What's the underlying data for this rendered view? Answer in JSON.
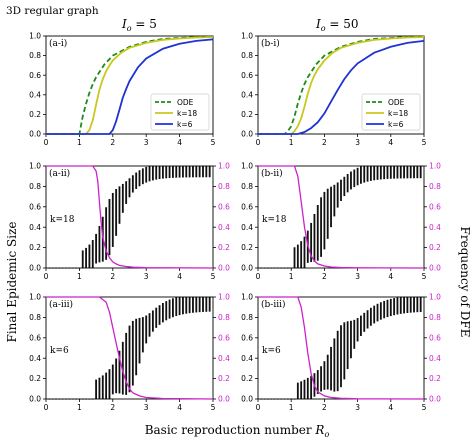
{
  "figure": {
    "title": "3D regular graph",
    "col_headers": [
      {
        "prefix": "I",
        "sub": "o",
        "rest": " = 5"
      },
      {
        "prefix": "I",
        "sub": "o",
        "rest": " = 50"
      }
    ],
    "left_ylabel": "Final Epidemic Size",
    "right_ylabel": "Frequency of DFE",
    "xlabel_main": "Basic reproduction number ",
    "xlabel_var": "R",
    "xlabel_sub": "o"
  },
  "colors": {
    "ode": "#1a8c1a",
    "k18": "#c8c81e",
    "k6": "#1f32d2",
    "dfe": "#cc22cc",
    "bars": "#111111"
  },
  "chart_data": [
    {
      "panel": "(a-i)",
      "type": "line",
      "xlim": [
        0,
        5
      ],
      "ylim": [
        0,
        1.0
      ],
      "xticks": [
        "0",
        "1",
        "2",
        "3",
        "4",
        "5"
      ],
      "yticks": [
        "0.0",
        "0.2",
        "0.4",
        "0.6",
        "0.8",
        "1.0"
      ],
      "legend_position": "lower-right",
      "series": [
        {
          "name": "ODE",
          "style": "dashed",
          "x": [
            1.0,
            1.1,
            1.2,
            1.3,
            1.4,
            1.5,
            1.75,
            2.0,
            2.5,
            3.0,
            3.5,
            4.0,
            4.5,
            5.0
          ],
          "y": [
            0,
            0.18,
            0.31,
            0.42,
            0.51,
            0.58,
            0.71,
            0.8,
            0.89,
            0.94,
            0.97,
            0.98,
            0.99,
            0.993
          ]
        },
        {
          "name": "k=18",
          "style": "solid",
          "x": [
            1.2,
            1.3,
            1.4,
            1.5,
            1.6,
            1.7,
            1.8,
            1.9,
            2.0,
            2.25,
            2.5,
            3.0,
            3.5,
            4.0,
            4.5,
            5.0
          ],
          "y": [
            0,
            0.04,
            0.14,
            0.3,
            0.45,
            0.56,
            0.64,
            0.7,
            0.75,
            0.83,
            0.88,
            0.93,
            0.96,
            0.975,
            0.985,
            0.99
          ]
        },
        {
          "name": "k=6",
          "style": "solid",
          "x": [
            1.9,
            2.0,
            2.1,
            2.2,
            2.3,
            2.4,
            2.5,
            2.75,
            3.0,
            3.5,
            4.0,
            4.5,
            5.0
          ],
          "y": [
            0,
            0.04,
            0.13,
            0.25,
            0.37,
            0.46,
            0.54,
            0.68,
            0.77,
            0.87,
            0.92,
            0.95,
            0.965
          ]
        }
      ]
    },
    {
      "panel": "(b-i)",
      "type": "line",
      "xlim": [
        0,
        5
      ],
      "ylim": [
        0,
        1.0
      ],
      "xticks": [
        "0",
        "1",
        "2",
        "3",
        "4",
        "5"
      ],
      "yticks": [
        "0.0",
        "0.2",
        "0.4",
        "0.6",
        "0.8",
        "1.0"
      ],
      "legend_position": "lower-right",
      "series": [
        {
          "name": "ODE",
          "style": "dashed",
          "x": [
            0.8,
            0.9,
            1.0,
            1.1,
            1.2,
            1.3,
            1.4,
            1.5,
            1.75,
            2.0,
            2.5,
            3.0,
            3.5,
            4.0,
            4.5,
            5.0
          ],
          "y": [
            0,
            0.03,
            0.08,
            0.18,
            0.31,
            0.42,
            0.51,
            0.58,
            0.71,
            0.8,
            0.89,
            0.94,
            0.97,
            0.98,
            0.99,
            0.993
          ]
        },
        {
          "name": "k=18",
          "style": "solid",
          "x": [
            1.0,
            1.1,
            1.2,
            1.3,
            1.4,
            1.5,
            1.6,
            1.7,
            1.8,
            2.0,
            2.25,
            2.5,
            3.0,
            3.5,
            4.0,
            4.5,
            5.0
          ],
          "y": [
            0,
            0.03,
            0.08,
            0.16,
            0.28,
            0.41,
            0.52,
            0.6,
            0.66,
            0.75,
            0.83,
            0.88,
            0.93,
            0.96,
            0.975,
            0.985,
            0.99
          ]
        },
        {
          "name": "k=6",
          "style": "solid",
          "x": [
            1.2,
            1.4,
            1.6,
            1.8,
            2.0,
            2.2,
            2.4,
            2.6,
            2.8,
            3.0,
            3.5,
            4.0,
            4.5,
            5.0
          ],
          "y": [
            0,
            0.02,
            0.06,
            0.12,
            0.21,
            0.33,
            0.45,
            0.56,
            0.65,
            0.72,
            0.83,
            0.89,
            0.93,
            0.95
          ]
        }
      ]
    },
    {
      "panel": "(a-ii)",
      "type": "bar",
      "label": "k=18",
      "xlim": [
        0,
        5
      ],
      "ylim": [
        0,
        1.0
      ],
      "y2lim": [
        0,
        1.0
      ],
      "xticks": [
        "0",
        "1",
        "2",
        "3",
        "4",
        "5"
      ],
      "yticks": [
        "0.0",
        "0.2",
        "0.4",
        "0.6",
        "0.8",
        "1.0"
      ],
      "y2ticks": [
        "0.0",
        "0.2",
        "0.4",
        "0.6",
        "0.8",
        "1.0"
      ],
      "bars": {
        "x0": 0.1,
        "dx": 0.1,
        "count": 49,
        "onset": 1.0,
        "mid": 1.95,
        "scale": 0.36,
        "max": 0.98,
        "spread": [
          0.1,
          0.32
        ],
        "spread_end": 0.05
      },
      "dfe": {
        "x": [
          0,
          1.4,
          1.5,
          1.55,
          1.6,
          1.65,
          1.7,
          1.8,
          1.9,
          2.0,
          2.1,
          2.2,
          2.4,
          2.6,
          3.0,
          5.0
        ],
        "y": [
          1.0,
          1.0,
          0.95,
          0.85,
          0.65,
          0.45,
          0.3,
          0.17,
          0.1,
          0.06,
          0.04,
          0.025,
          0.015,
          0.008,
          0.003,
          0
        ]
      }
    },
    {
      "panel": "(b-ii)",
      "type": "bar",
      "label": "k=18",
      "xlim": [
        0,
        5
      ],
      "ylim": [
        0,
        1.0
      ],
      "y2lim": [
        0,
        1.0
      ],
      "xticks": [
        "0",
        "1",
        "2",
        "3",
        "4",
        "5"
      ],
      "yticks": [
        "0.0",
        "0.2",
        "0.4",
        "0.6",
        "0.8",
        "1.0"
      ],
      "y2ticks": [
        "0.0",
        "0.2",
        "0.4",
        "0.6",
        "0.8",
        "1.0"
      ],
      "bars": {
        "x0": 0.1,
        "dx": 0.1,
        "count": 49,
        "onset": 1.0,
        "mid": 1.95,
        "scale": 0.4,
        "max": 0.98,
        "spread": [
          0.12,
          0.33
        ],
        "spread_end": 0.05
      },
      "dfe": {
        "x": [
          0,
          1.1,
          1.2,
          1.3,
          1.4,
          1.5,
          1.6,
          1.7,
          1.8,
          2.0,
          2.2,
          2.5,
          3.0,
          5.0
        ],
        "y": [
          1.0,
          1.0,
          0.9,
          0.65,
          0.4,
          0.22,
          0.12,
          0.07,
          0.04,
          0.02,
          0.01,
          0.005,
          0.002,
          0
        ]
      }
    },
    {
      "panel": "(a-iii)",
      "type": "bar",
      "label": "k=6",
      "xlim": [
        0,
        5
      ],
      "ylim": [
        0,
        1.0
      ],
      "y2lim": [
        0,
        1.0
      ],
      "xticks": [
        "0",
        "1",
        "2",
        "3",
        "4",
        "5"
      ],
      "yticks": [
        "0.0",
        "0.2",
        "0.4",
        "0.6",
        "0.8",
        "1.0"
      ],
      "y2ticks": [
        "0.0",
        "0.2",
        "0.4",
        "0.6",
        "0.8",
        "1.0"
      ],
      "bars": {
        "x0": 0.1,
        "dx": 0.1,
        "count": 49,
        "onset": 1.5,
        "mid": 2.55,
        "scale": 0.45,
        "max": 0.97,
        "spread": [
          0.12,
          0.38
        ],
        "spread_end": 0.06
      },
      "dfe": {
        "x": [
          0,
          1.6,
          1.8,
          1.9,
          2.0,
          2.1,
          2.2,
          2.3,
          2.4,
          2.5,
          2.6,
          2.8,
          3.0,
          3.5,
          5.0
        ],
        "y": [
          1.0,
          1.0,
          0.95,
          0.85,
          0.7,
          0.55,
          0.4,
          0.27,
          0.17,
          0.1,
          0.06,
          0.03,
          0.015,
          0.005,
          0
        ]
      }
    },
    {
      "panel": "(b-iii)",
      "type": "bar",
      "label": "k=6",
      "xlim": [
        0,
        5
      ],
      "ylim": [
        0,
        1.0
      ],
      "y2lim": [
        0,
        1.0
      ],
      "xticks": [
        "0",
        "1",
        "2",
        "3",
        "4",
        "5"
      ],
      "yticks": [
        "0.0",
        "0.2",
        "0.4",
        "0.6",
        "0.8",
        "1.0"
      ],
      "y2ticks": [
        "0.0",
        "0.2",
        "0.4",
        "0.6",
        "0.8",
        "1.0"
      ],
      "bars": {
        "x0": 0.1,
        "dx": 0.1,
        "count": 49,
        "onset": 1.2,
        "mid": 2.5,
        "scale": 0.5,
        "max": 0.96,
        "spread": [
          0.1,
          0.36
        ],
        "spread_end": 0.06
      },
      "dfe": {
        "x": [
          0,
          1.2,
          1.3,
          1.4,
          1.5,
          1.6,
          1.7,
          1.8,
          2.0,
          2.2,
          2.5,
          3.0,
          5.0
        ],
        "y": [
          1.0,
          1.0,
          0.9,
          0.7,
          0.45,
          0.25,
          0.13,
          0.07,
          0.03,
          0.015,
          0.007,
          0.002,
          0
        ]
      }
    }
  ]
}
